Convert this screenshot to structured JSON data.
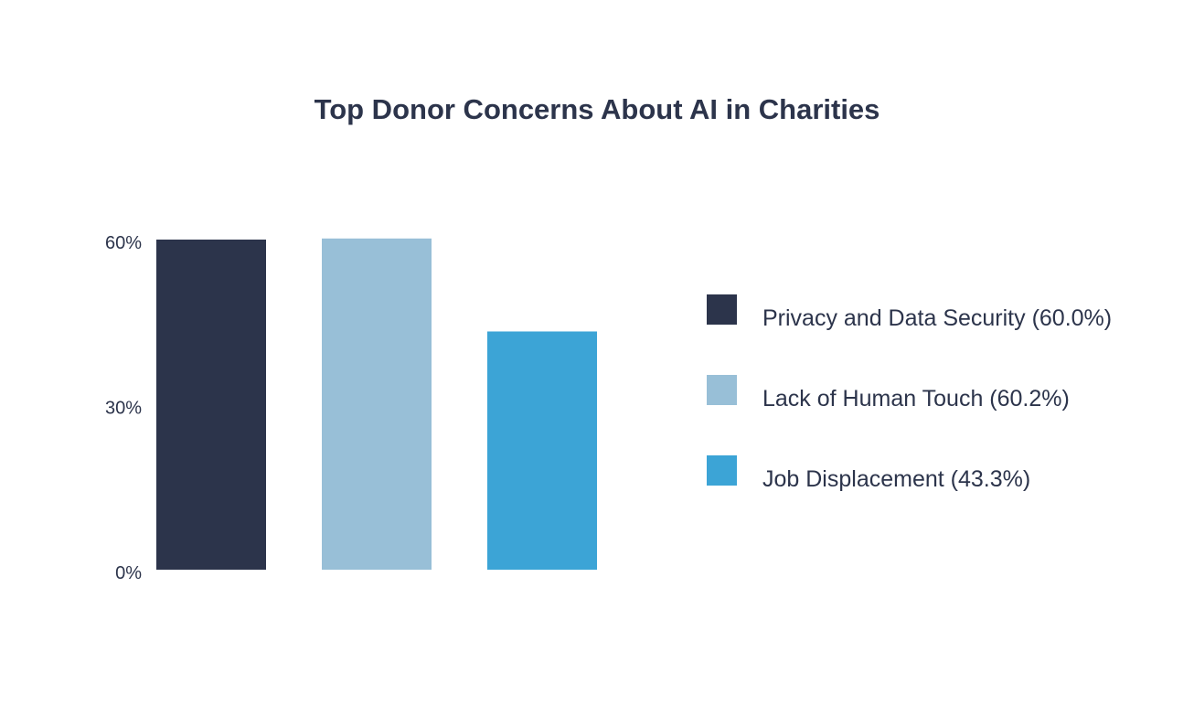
{
  "chart_data": {
    "type": "bar",
    "title": "Top Donor Concerns About AI in Charities",
    "xlabel": "",
    "ylabel": "",
    "categories": [
      "Privacy and Data Security",
      "Lack of Human Touch",
      "Job Displacement"
    ],
    "values": [
      60.0,
      60.2,
      43.3
    ],
    "legend_labels": [
      "Privacy and Data Security (60.0%)",
      "Lack of Human Touch (60.2%)",
      "Job Displacement (43.3%)"
    ],
    "colors": [
      "#2c344b",
      "#98bfd7",
      "#3ca4d6"
    ],
    "ylim": [
      0,
      60
    ],
    "yticks": [
      0,
      30,
      60
    ],
    "ytick_labels": [
      "0%",
      "30%",
      "60%"
    ],
    "grid": false,
    "legend_position": "right"
  },
  "style": {
    "text_color": "#2c344b",
    "background": "#ffffff"
  }
}
